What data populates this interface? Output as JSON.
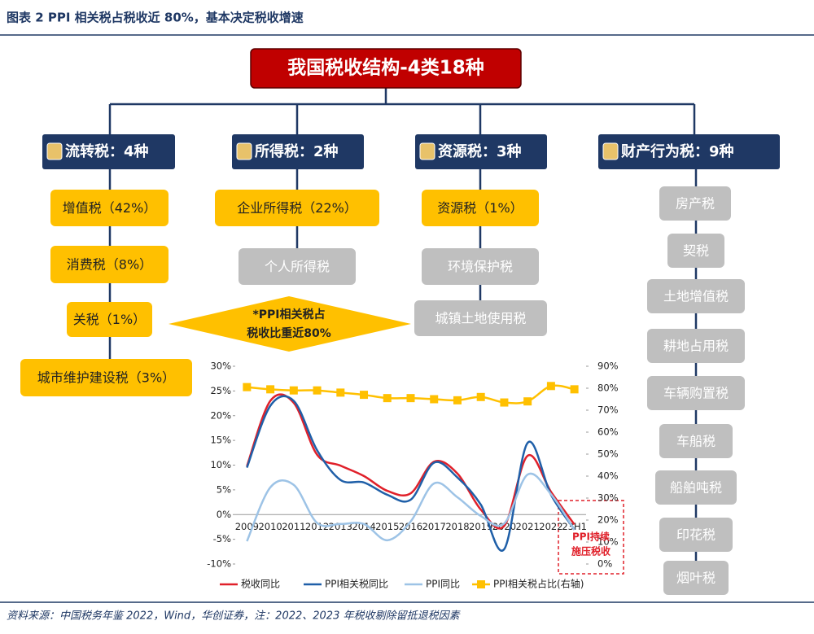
{
  "header": {
    "title": "图表 2   PPI 相关税占税收近 80%，基本决定税收增速"
  },
  "diagram": {
    "root": "我国税收结构-4类18种",
    "groups": [
      {
        "label": "流转税：4种",
        "items": [
          {
            "label": "增值税（42%）",
            "color": "#ffc000"
          },
          {
            "label": "消费税（8%）",
            "color": "#ffc000"
          },
          {
            "label": "关税（1%）",
            "color": "#ffc000"
          },
          {
            "label": "城市维护建设税（3%）",
            "color": "#ffc000"
          }
        ]
      },
      {
        "label": "所得税：2种",
        "items": [
          {
            "label": "企业所得税（22%）",
            "color": "#ffc000"
          },
          {
            "label": "个人所得税",
            "color": "#bfbfbf"
          }
        ]
      },
      {
        "label": "资源税：3种",
        "items": [
          {
            "label": "资源税（1%）",
            "color": "#ffc000"
          },
          {
            "label": "环境保护税",
            "color": "#bfbfbf"
          },
          {
            "label": "城镇土地使用税",
            "color": "#bfbfbf"
          }
        ]
      },
      {
        "label": "财产行为税：9种",
        "items": [
          {
            "label": "房产税",
            "color": "#bfbfbf"
          },
          {
            "label": "契税",
            "color": "#bfbfbf"
          },
          {
            "label": "土地增值税",
            "color": "#bfbfbf"
          },
          {
            "label": "耕地占用税",
            "color": "#bfbfbf"
          },
          {
            "label": "车辆购置税",
            "color": "#bfbfbf"
          },
          {
            "label": "车船税",
            "color": "#bfbfbf"
          },
          {
            "label": "船舶吨税",
            "color": "#bfbfbf"
          },
          {
            "label": "印花税",
            "color": "#bfbfbf"
          },
          {
            "label": "烟叶税",
            "color": "#bfbfbf"
          }
        ]
      }
    ],
    "callout": [
      "*PPI相关税占",
      "税收比重近80%"
    ]
  },
  "chart_data": {
    "type": "line",
    "categories": [
      "2009",
      "2010",
      "2011",
      "2012",
      "2013",
      "2014",
      "2015",
      "2016",
      "2017",
      "2018",
      "2019",
      "2020",
      "2021",
      "2022",
      "23H1"
    ],
    "series": [
      {
        "name": "税收同比",
        "color": "#e0202a",
        "values": [
          9.8,
          23.0,
          22.6,
          12.1,
          9.9,
          7.8,
          4.8,
          4.3,
          10.7,
          8.3,
          1.0,
          -2.3,
          11.9,
          4.6,
          -2.0
        ]
      },
      {
        "name": "PPI相关税同比",
        "color": "#1f5fa8",
        "values": [
          9.5,
          22.0,
          23.0,
          13.0,
          7.0,
          6.5,
          4.0,
          3.0,
          10.5,
          7.5,
          2.0,
          -7.0,
          14.5,
          4.0,
          -3.0
        ]
      },
      {
        "name": "PPI同比",
        "color": "#9dc3e6",
        "values": [
          -5.4,
          5.5,
          6.0,
          -1.7,
          -1.9,
          -1.9,
          -5.2,
          -1.4,
          6.3,
          3.5,
          -0.3,
          -1.8,
          8.1,
          4.1,
          -3.1
        ]
      },
      {
        "name": "PPI相关税占比(右轴)",
        "color": "#ffc000",
        "axis": "y2",
        "values": [
          80.5,
          79.5,
          79,
          79,
          78,
          77,
          75.5,
          75.5,
          75,
          74.5,
          76,
          73.5,
          74,
          81,
          79.5
        ]
      }
    ],
    "ylim": [
      -10,
      30
    ],
    "yticks": [
      {
        "value": -10,
        "label": "-10%"
      },
      {
        "value": -5,
        "label": "-5%"
      },
      {
        "value": 0,
        "label": "0%"
      },
      {
        "value": 5,
        "label": "5%"
      },
      {
        "value": 10,
        "label": "10%"
      },
      {
        "value": 15,
        "label": "15%"
      },
      {
        "value": 20,
        "label": "20%"
      },
      {
        "value": 25,
        "label": "25%"
      },
      {
        "value": 30,
        "label": "30%"
      }
    ],
    "y2lim": [
      0,
      90
    ],
    "y2ticks": [
      {
        "value": 0,
        "label": "0%"
      },
      {
        "value": 10,
        "label": "10%"
      },
      {
        "value": 20,
        "label": "20%"
      },
      {
        "value": 30,
        "label": "30%"
      },
      {
        "value": 40,
        "label": "40%"
      },
      {
        "value": 50,
        "label": "50%"
      },
      {
        "value": 60,
        "label": "60%"
      },
      {
        "value": 70,
        "label": "70%"
      },
      {
        "value": 80,
        "label": "80%"
      },
      {
        "value": 90,
        "label": "90%"
      }
    ],
    "legend": "bottom",
    "annotations": [
      "PPI持续",
      "施压税收"
    ]
  },
  "footer": {
    "source": "资料来源：中国税务年鉴 2022，Wind，华创证券，注：2022、2023 年税收剔除留抵退税因素"
  }
}
